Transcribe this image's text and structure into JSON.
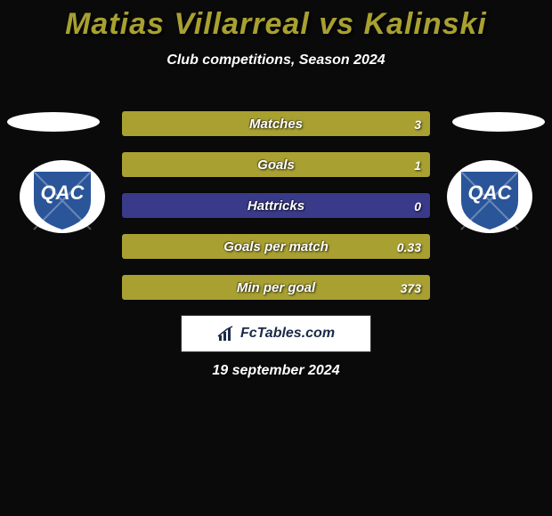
{
  "title_color": "#a8a030",
  "title": "Matias Villarreal vs Kalinski",
  "subtitle": "Club competitions, Season 2024",
  "colors": {
    "player1": "#a8a030",
    "player2": "#3a3a8a",
    "background": "#0a0a0a"
  },
  "badge": {
    "bg": "#ffffff",
    "shield": "#2a5599",
    "letters": "QAC"
  },
  "stats": [
    {
      "label": "Matches",
      "v1": "",
      "v2": "3",
      "p1": 0,
      "p2": 100
    },
    {
      "label": "Goals",
      "v1": "",
      "v2": "1",
      "p1": 0,
      "p2": 100
    },
    {
      "label": "Hattricks",
      "v1": "",
      "v2": "0",
      "p1": 50,
      "p2": 50
    },
    {
      "label": "Goals per match",
      "v1": "",
      "v2": "0.33",
      "p1": 0,
      "p2": 100
    },
    {
      "label": "Min per goal",
      "v1": "",
      "v2": "373",
      "p1": 0,
      "p2": 100
    }
  ],
  "logo_text": "FcTables.com",
  "date": "19 september 2024"
}
